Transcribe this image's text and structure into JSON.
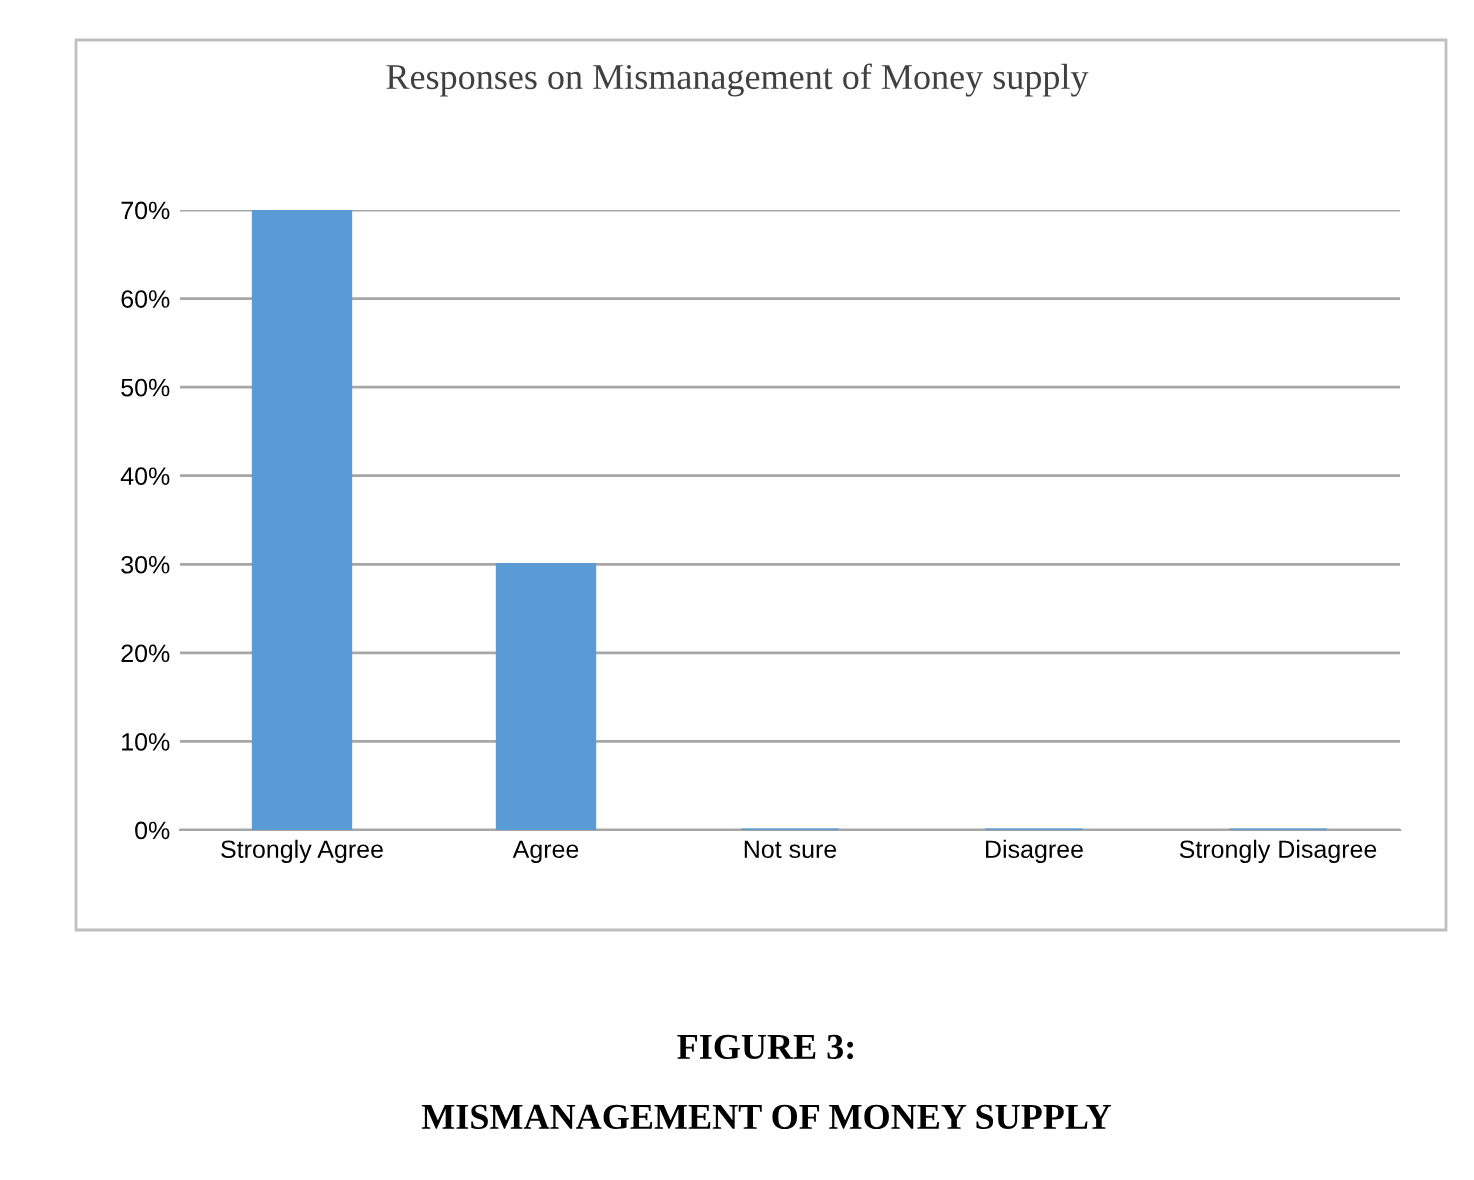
{
  "chart_data": {
    "type": "bar",
    "title": "Responses on Mismanagement of Money supply",
    "categories": [
      "Strongly Agree",
      "Agree",
      "Not sure",
      "Disagree",
      "Strongly Disagree"
    ],
    "values": [
      70,
      30,
      0,
      0,
      0
    ],
    "color": "#5b9bd5",
    "ylim": [
      0,
      70
    ],
    "yticks": [
      {
        "value": 0,
        "label": "0%"
      },
      {
        "value": 10,
        "label": "10%"
      },
      {
        "value": 20,
        "label": "20%"
      },
      {
        "value": 30,
        "label": "30%"
      },
      {
        "value": 40,
        "label": "40%"
      },
      {
        "value": 50,
        "label": "50%"
      },
      {
        "value": 60,
        "label": "60%"
      },
      {
        "value": 70,
        "label": "70%"
      }
    ],
    "grid": "y",
    "legend": false,
    "annotations": [
      "FIGURE 3:",
      "MISMANAGEMENT OF MONEY SUPPLY"
    ]
  }
}
